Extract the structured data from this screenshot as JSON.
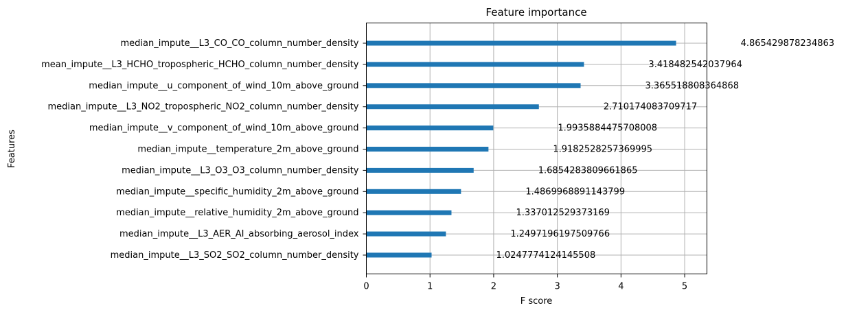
{
  "chart_data": {
    "type": "bar",
    "orientation": "horizontal",
    "title": "Feature importance",
    "xlabel": "F score",
    "ylabel": "Features",
    "xlim": [
      0,
      5.35
    ],
    "xticks": [
      0,
      1,
      2,
      3,
      4,
      5
    ],
    "grid": true,
    "bar_color": "#1f77b4",
    "categories": [
      "median_impute__L3_CO_CO_column_number_density",
      "mean_impute__L3_HCHO_tropospheric_HCHO_column_number_density",
      "median_impute__u_component_of_wind_10m_above_ground",
      "median_impute__L3_NO2_tropospheric_NO2_column_number_density",
      "median_impute__v_component_of_wind_10m_above_ground",
      "median_impute__temperature_2m_above_ground",
      "median_impute__L3_O3_O3_column_number_density",
      "median_impute__specific_humidity_2m_above_ground",
      "median_impute__relative_humidity_2m_above_ground",
      "median_impute__L3_AER_AI_absorbing_aerosol_index",
      "median_impute__L3_SO2_SO2_column_number_density"
    ],
    "values": [
      4.865429878234863,
      3.418482542037964,
      3.365518808364868,
      2.710174083709717,
      1.9935884475708008,
      1.9182528257369995,
      1.6854283809661865,
      1.4869968891143799,
      1.337012529373169,
      1.2497196197509766,
      1.0247774124145508
    ],
    "value_labels": [
      "4.865429878234863",
      "3.418482542037964",
      "3.365518808364868",
      "2.710174083709717",
      "1.9935884475708008",
      "1.9182528257369995",
      "1.6854283809661865",
      "1.4869968891143799",
      "1.337012529373169",
      "1.2497196197509766",
      "1.0247774124145508"
    ]
  }
}
